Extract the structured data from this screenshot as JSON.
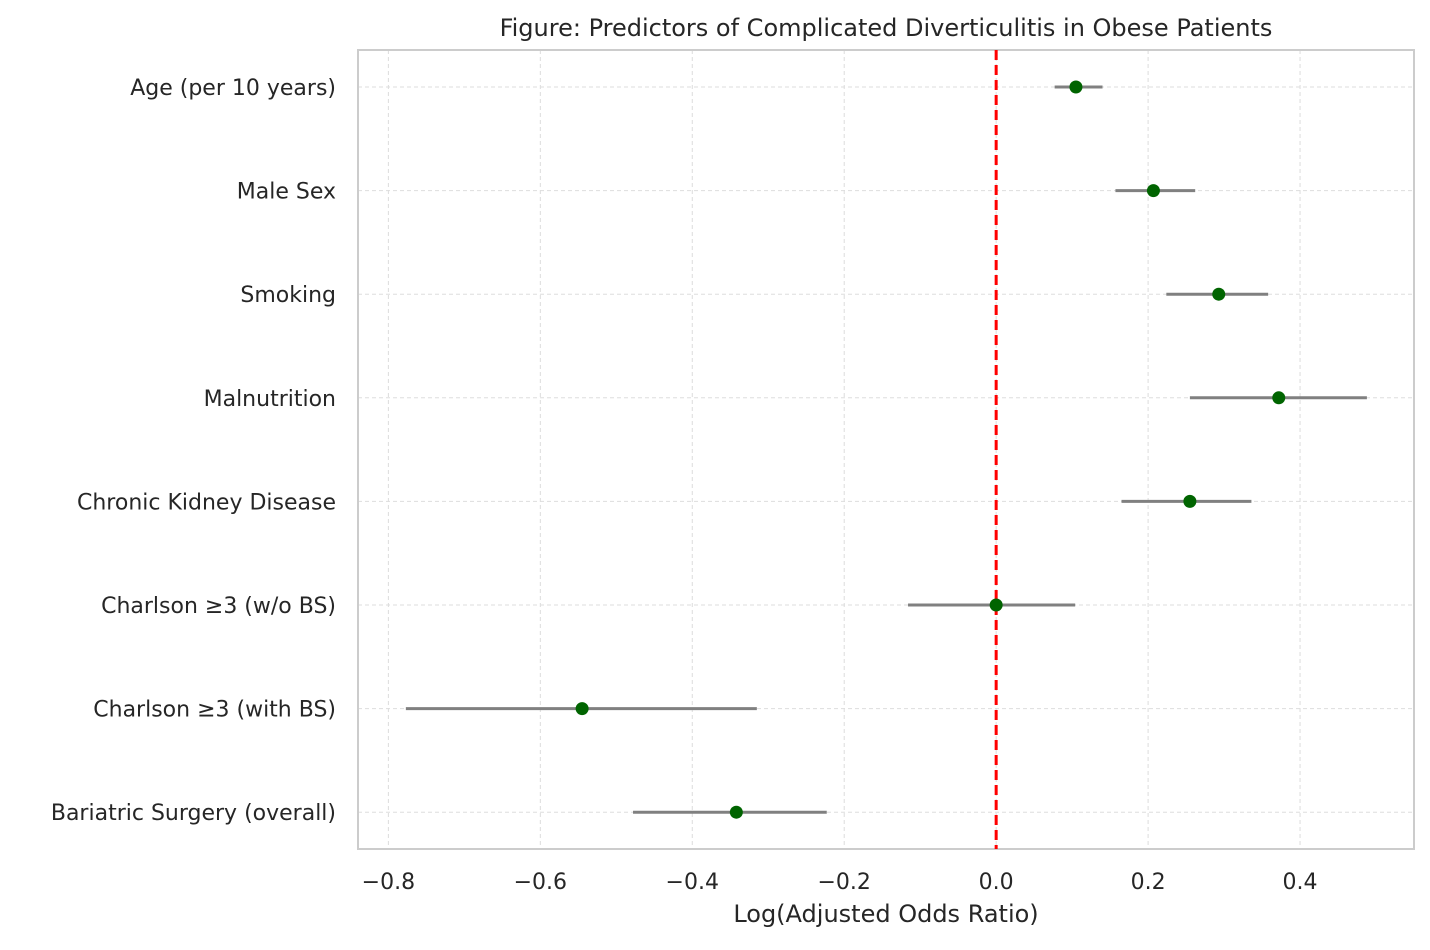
{
  "chart_data": {
    "type": "forest",
    "title": "Figure: Predictors of Complicated Diverticulitis in Obese Patients",
    "xlabel": "Log(Adjusted Odds Ratio)",
    "ylabel": "",
    "xlim": [
      -0.84,
      0.55
    ],
    "xticks": [
      -0.8,
      -0.6,
      -0.4,
      -0.2,
      0.0,
      0.2,
      0.4
    ],
    "xtick_labels": [
      "−0.8",
      "−0.6",
      "−0.4",
      "−0.2",
      "0.0",
      "0.2",
      "0.4"
    ],
    "reference_line": 0.0,
    "grid": true,
    "colors": {
      "point": "#006400",
      "ci": "#808080",
      "reference": "#ff0000",
      "grid": "#dddddd",
      "frame": "#cccccc"
    },
    "categories": [
      "Age (per 10 years)",
      "Male Sex",
      "Smoking",
      "Malnutrition",
      "Chronic Kidney Disease",
      "Charlson ≥3 (w/o BS)",
      "Charlson ≥3 (with BS)",
      "Bariatric Surgery (overall)"
    ],
    "estimates": [
      0.105,
      0.207,
      0.293,
      0.372,
      0.255,
      0.0,
      -0.545,
      -0.342
    ],
    "ci_lower": [
      0.077,
      0.157,
      0.224,
      0.255,
      0.165,
      -0.116,
      -0.777,
      -0.478
    ],
    "ci_upper": [
      0.14,
      0.262,
      0.358,
      0.488,
      0.336,
      0.104,
      -0.315,
      -0.223
    ]
  }
}
